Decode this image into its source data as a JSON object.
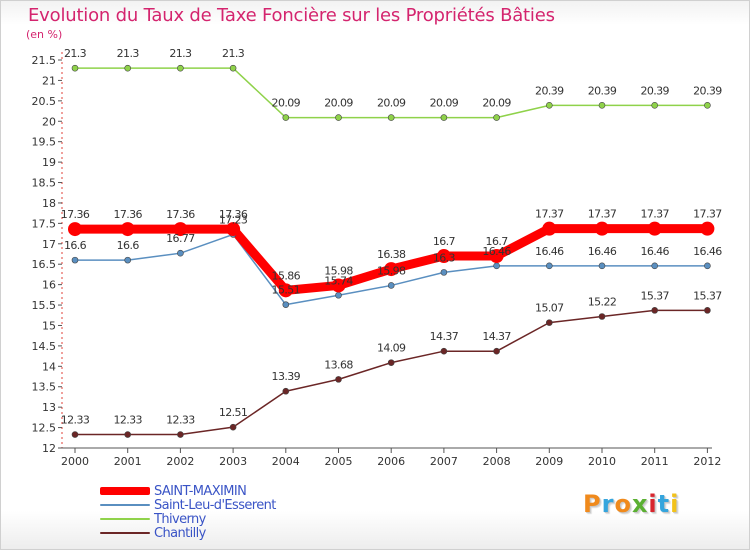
{
  "header": {
    "title": "Evolution du Taux de Taxe Foncière sur les Propriétés Bâties",
    "unit": "(en %)"
  },
  "brand": {
    "letters": [
      "P",
      "r",
      "o",
      "x",
      "i",
      "t",
      "i"
    ],
    "colors": [
      "#f08a1c",
      "#35a5dd",
      "#f08a1c",
      "#5bb032",
      "#d8262e",
      "#35a5dd",
      "#f2c21b"
    ]
  },
  "chart_data": {
    "type": "line",
    "title": "Evolution du Taux de Taxe Foncière sur les Propriétés Bâties",
    "ylabel": "(en %)",
    "xlabel": "",
    "x": [
      "2000",
      "2001",
      "2002",
      "2003",
      "2004",
      "2005",
      "2006",
      "2007",
      "2008",
      "2009",
      "2010",
      "2011",
      "2012"
    ],
    "ylim": [
      12,
      21.5
    ],
    "yticks": [
      "12",
      "12.5",
      "13",
      "13.5",
      "14",
      "14.5",
      "15",
      "15.5",
      "16",
      "16.5",
      "17",
      "17.5",
      "18",
      "18.5",
      "19",
      "19.5",
      "20",
      "20.5",
      "21",
      "21.5"
    ],
    "grid": false,
    "legend_position": "bottom-left",
    "series": [
      {
        "name": "SAINT-MAXIMIN",
        "color": "#ff0000",
        "values": [
          17.36,
          17.36,
          17.36,
          17.36,
          15.86,
          15.98,
          16.38,
          16.7,
          16.7,
          17.37,
          17.37,
          17.37,
          17.37
        ],
        "labels": [
          "17.36",
          "17.36",
          "17.36",
          "17.36",
          "15.86",
          "15.98",
          "16.38",
          "16.7",
          "16.7",
          "17.37",
          "17.37",
          "17.37",
          "17.37"
        ]
      },
      {
        "name": "Saint-Leu-d'Esserent",
        "color": "#5a8fc0",
        "values": [
          16.6,
          16.6,
          16.77,
          17.23,
          15.51,
          15.74,
          15.98,
          16.3,
          16.46,
          16.46,
          16.46,
          16.46,
          16.46
        ],
        "labels": [
          "16.6",
          "16.6",
          "16.77",
          "17.23",
          "15.51",
          "15.74",
          "15.98",
          "16.3",
          "16.46",
          "16.46",
          "16.46",
          "16.46",
          "16.46"
        ]
      },
      {
        "name": "Thiverny",
        "color": "#8fd24a",
        "values": [
          21.3,
          21.3,
          21.3,
          21.3,
          20.09,
          20.09,
          20.09,
          20.09,
          20.09,
          20.39,
          20.39,
          20.39,
          20.39
        ],
        "labels": [
          "21.3",
          "21.3",
          "21.3",
          "21.3",
          "20.09",
          "20.09",
          "20.09",
          "20.09",
          "20.09",
          "20.39",
          "20.39",
          "20.39",
          "20.39"
        ]
      },
      {
        "name": "Chantilly",
        "color": "#6b2626",
        "values": [
          12.33,
          12.33,
          12.33,
          12.51,
          13.39,
          13.68,
          14.09,
          14.37,
          14.37,
          15.07,
          15.22,
          15.37,
          15.37
        ],
        "labels": [
          "12.33",
          "12.33",
          "12.33",
          "12.51",
          "13.39",
          "13.68",
          "14.09",
          "14.37",
          "14.37",
          "15.07",
          "15.22",
          "15.37",
          "15.37"
        ]
      }
    ]
  }
}
